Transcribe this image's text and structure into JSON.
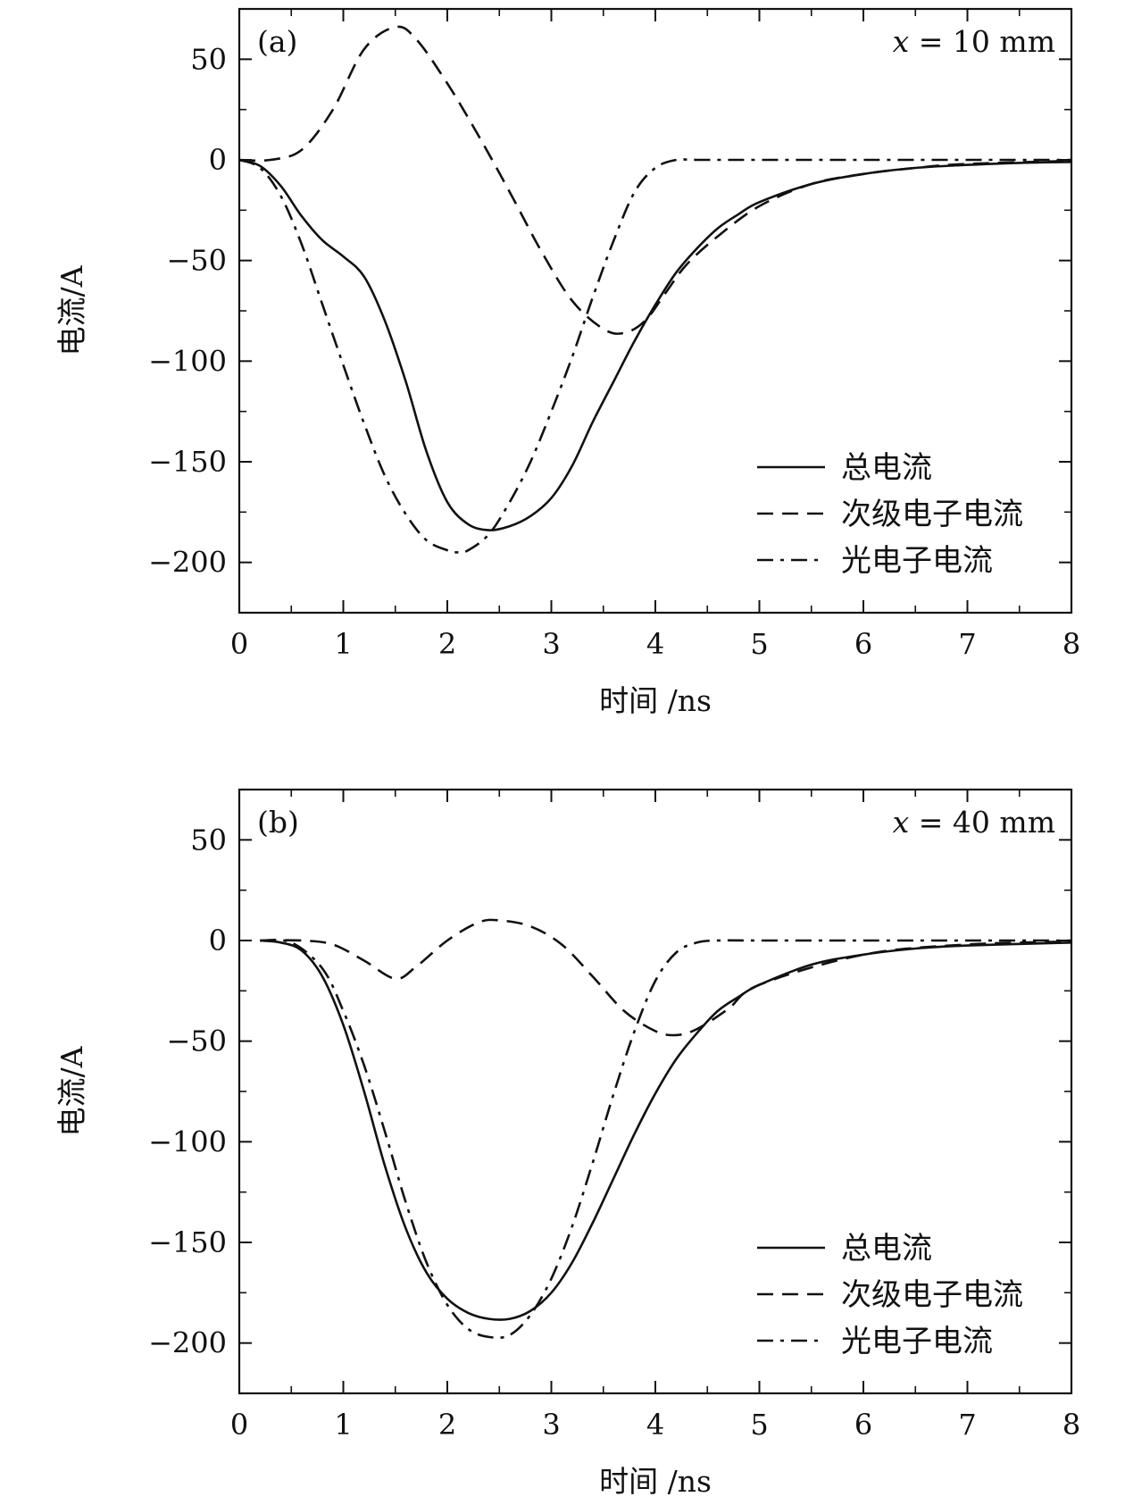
{
  "chart_data": [
    {
      "type": "line",
      "panel_label": "(a)",
      "annotation": "x = 10 mm",
      "annotation_var": "x",
      "annotation_rest": " = 10 mm",
      "xlabel": "时间 /ns",
      "ylabel": "电流/A",
      "xlim": [
        0,
        8
      ],
      "ylim": [
        -225,
        75
      ],
      "xticks": [
        0,
        1,
        2,
        3,
        4,
        5,
        6,
        7,
        8
      ],
      "yticks": [
        50,
        0,
        -50,
        -100,
        -150,
        -200
      ],
      "ytick_labels": [
        "50",
        "0",
        "−50",
        "−100",
        "−150",
        "−200"
      ],
      "legend_position": "bottom-right",
      "series": [
        {
          "name": "总电流",
          "style": "solid",
          "x": [
            0,
            0.2,
            0.4,
            0.6,
            0.8,
            1.0,
            1.2,
            1.4,
            1.6,
            1.8,
            2.0,
            2.2,
            2.4,
            2.6,
            2.8,
            3.0,
            3.2,
            3.4,
            3.6,
            3.8,
            4.0,
            4.2,
            4.4,
            4.6,
            4.8,
            5.0,
            5.5,
            6.0,
            6.5,
            7.0,
            7.5,
            8.0
          ],
          "y": [
            0,
            -3,
            -13,
            -28,
            -40,
            -48,
            -58,
            -80,
            -110,
            -145,
            -170,
            -181,
            -184,
            -182,
            -177,
            -168,
            -152,
            -130,
            -110,
            -90,
            -72,
            -56,
            -44,
            -34,
            -27,
            -21,
            -12,
            -7,
            -4,
            -2.5,
            -1.5,
            -1
          ]
        },
        {
          "name": "次级电子电流",
          "style": "dashed",
          "x": [
            0,
            0.3,
            0.6,
            0.9,
            1.2,
            1.5,
            1.7,
            2.0,
            2.3,
            2.6,
            2.9,
            3.2,
            3.5,
            3.7,
            3.9,
            4.1,
            4.3,
            4.6,
            5.0,
            5.5,
            6.0,
            6.5,
            7.0,
            8.0
          ],
          "y": [
            0,
            0,
            5,
            25,
            55,
            66,
            60,
            38,
            12,
            -16,
            -45,
            -70,
            -84,
            -86,
            -80,
            -66,
            -52,
            -38,
            -23,
            -12,
            -7,
            -4,
            -2,
            -0.5
          ]
        },
        {
          "name": "光电子电流",
          "style": "dashdot",
          "x": [
            0,
            0.2,
            0.4,
            0.6,
            0.8,
            1.0,
            1.2,
            1.4,
            1.6,
            1.8,
            2.0,
            2.1,
            2.2,
            2.4,
            2.6,
            2.8,
            3.0,
            3.2,
            3.4,
            3.6,
            3.8,
            4.0,
            4.2,
            4.4,
            5.0,
            6.0,
            8.0
          ],
          "y": [
            0,
            -4,
            -18,
            -42,
            -72,
            -102,
            -131,
            -157,
            -176,
            -189,
            -194,
            -195,
            -194,
            -186,
            -170,
            -150,
            -125,
            -98,
            -68,
            -40,
            -16,
            -4,
            0,
            0,
            0,
            0,
            0
          ]
        }
      ]
    },
    {
      "type": "line",
      "panel_label": "(b)",
      "annotation": "x = 40 mm",
      "annotation_var": "x",
      "annotation_rest": " = 40 mm",
      "xlabel": "时间 /ns",
      "ylabel": "电流/A",
      "xlim": [
        0,
        8
      ],
      "ylim": [
        -225,
        75
      ],
      "xticks": [
        0,
        1,
        2,
        3,
        4,
        5,
        6,
        7,
        8
      ],
      "yticks": [
        50,
        0,
        -50,
        -100,
        -150,
        -200
      ],
      "ytick_labels": [
        "50",
        "0",
        "−50",
        "−100",
        "−150",
        "−200"
      ],
      "legend_position": "bottom-right",
      "series": [
        {
          "name": "总电流",
          "style": "solid",
          "x": [
            0.2,
            0.4,
            0.6,
            0.8,
            1.0,
            1.2,
            1.4,
            1.6,
            1.8,
            2.0,
            2.2,
            2.4,
            2.6,
            2.8,
            3.0,
            3.2,
            3.4,
            3.6,
            3.8,
            4.0,
            4.2,
            4.4,
            4.6,
            4.8,
            5.0,
            5.5,
            6.0,
            6.5,
            7.0,
            8.0
          ],
          "y": [
            0,
            -1,
            -5,
            -18,
            -42,
            -75,
            -112,
            -143,
            -165,
            -178,
            -185,
            -188,
            -188,
            -184,
            -175,
            -160,
            -140,
            -118,
            -96,
            -76,
            -59,
            -46,
            -35,
            -28,
            -22,
            -12,
            -7,
            -4,
            -2.5,
            -1
          ]
        },
        {
          "name": "次级电子电流",
          "style": "dashed",
          "x": [
            0.2,
            0.6,
            0.9,
            1.2,
            1.5,
            1.7,
            2.0,
            2.3,
            2.5,
            2.8,
            3.1,
            3.4,
            3.7,
            4.0,
            4.2,
            4.4,
            4.7,
            5.0,
            6.0,
            7.0,
            8.0
          ],
          "y": [
            0,
            0,
            -2,
            -10,
            -19,
            -13,
            0,
            9,
            10,
            7,
            -2,
            -18,
            -35,
            -45,
            -47,
            -44,
            -34,
            -22,
            -7,
            -2,
            -0.5
          ]
        },
        {
          "name": "光电子电流",
          "style": "dashdot",
          "x": [
            0.2,
            0.5,
            0.8,
            1.0,
            1.2,
            1.4,
            1.6,
            1.8,
            2.0,
            2.2,
            2.4,
            2.6,
            2.8,
            3.0,
            3.2,
            3.4,
            3.6,
            3.8,
            4.0,
            4.2,
            4.4,
            4.6,
            5.0,
            6.0,
            8.0
          ],
          "y": [
            0,
            -1,
            -14,
            -35,
            -62,
            -95,
            -130,
            -160,
            -181,
            -193,
            -197,
            -196,
            -186,
            -168,
            -142,
            -110,
            -76,
            -45,
            -20,
            -6,
            -1,
            0,
            0,
            0,
            0
          ]
        }
      ]
    }
  ]
}
